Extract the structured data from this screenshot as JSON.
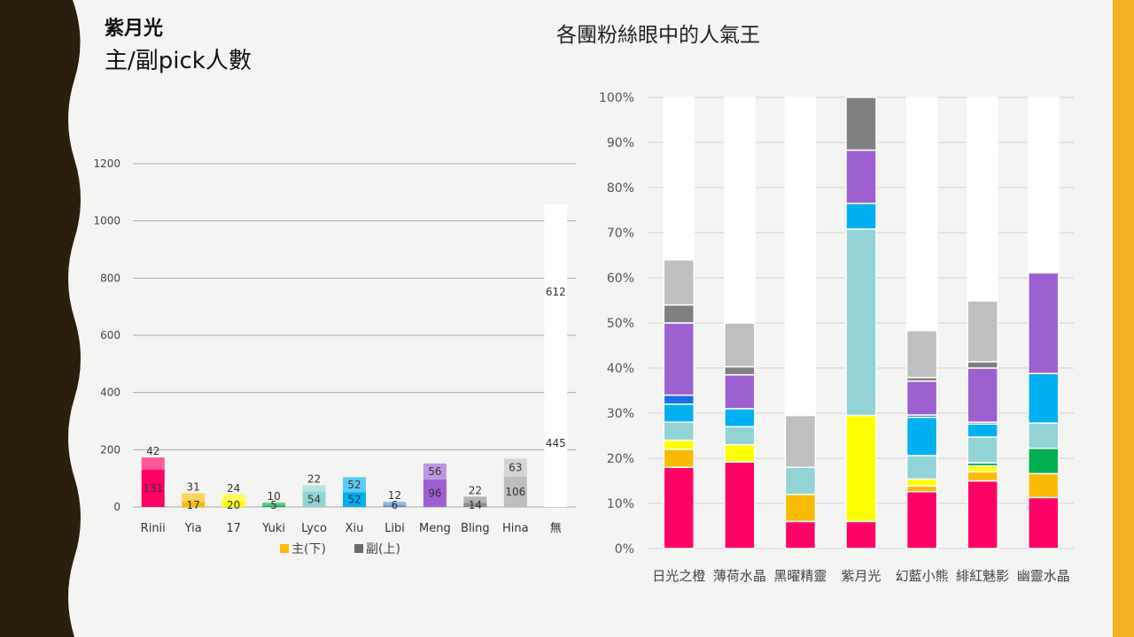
{
  "slide": {
    "title_main": "紫月光",
    "title_sub": "主/副pick人數",
    "right_title": "各團粉絲眼中的人氣王",
    "colors": {
      "left_wave": "#2b1e0c",
      "right_bar": "#f7b124",
      "background": "#f4f4f2"
    }
  },
  "chart_data": [
    {
      "type": "bar",
      "stacked": true,
      "categories": [
        "Rinii",
        "Yia",
        "17",
        "Yuki",
        "Lyco",
        "Xiu",
        "Libi",
        "Meng",
        "Bling",
        "Hina",
        "無"
      ],
      "series": [
        {
          "name": "主(下)",
          "values": [
            131,
            17,
            20,
            5,
            54,
            52,
            6,
            96,
            14,
            106,
            445
          ]
        },
        {
          "name": "副(上)",
          "values": [
            42,
            31,
            24,
            10,
            22,
            52,
            12,
            56,
            22,
            63,
            612
          ]
        }
      ],
      "colors": [
        "#ff0066",
        "#fbbb05",
        "#ffff00",
        "#00b050",
        "#92d4d6",
        "#00b0f0",
        "#5b8fd9",
        "#9e5fd0",
        "#8a8a8a",
        "#bdbdbd",
        "#ffffff"
      ],
      "ylim": [
        0,
        1200
      ],
      "yticks": [
        0,
        200,
        400,
        600,
        800,
        1000,
        1200
      ],
      "grid": true,
      "legend_position": "bottom",
      "legend": [
        {
          "label": "主(下)",
          "color": "#fbbb05"
        },
        {
          "label": "副(上)",
          "color": "#6b6b6b"
        }
      ]
    },
    {
      "type": "bar",
      "stacked": true,
      "percent": true,
      "categories": [
        "日光之橙",
        "薄荷水晶",
        "黑曜精靈",
        "紫月光",
        "幻藍小熊",
        "緋紅魅影",
        "幽靈水晶"
      ],
      "ylim": [
        0,
        100
      ],
      "yticks": [
        "0%",
        "10%",
        "20%",
        "30%",
        "40%",
        "50%",
        "60%",
        "70%",
        "80%",
        "90%",
        "100%"
      ],
      "grid": true,
      "stacks": [
        [
          {
            "color": "#ff0066",
            "value": 18
          },
          {
            "color": "#fbbb05",
            "value": 4
          },
          {
            "color": "#ffff00",
            "value": 2
          },
          {
            "color": "#92d4d6",
            "value": 4
          },
          {
            "color": "#00b0f0",
            "value": 4
          },
          {
            "color": "#1a6ff0",
            "value": 2
          },
          {
            "color": "#9e5fd0",
            "value": 16
          },
          {
            "color": "#7f7f7f",
            "value": 4
          },
          {
            "color": "#bfbfbf",
            "value": 10
          },
          {
            "color": "#ffffff",
            "value": 36
          }
        ],
        [
          {
            "color": "#ff0066",
            "value": 19.2
          },
          {
            "color": "#ffff00",
            "value": 3.8
          },
          {
            "color": "#92d4d6",
            "value": 4
          },
          {
            "color": "#00b0f0",
            "value": 4
          },
          {
            "color": "#9e5fd0",
            "value": 7.5
          },
          {
            "color": "#7f7f7f",
            "value": 1.8
          },
          {
            "color": "#bfbfbf",
            "value": 9.7
          },
          {
            "color": "#ffffff",
            "value": 50
          }
        ],
        [
          {
            "color": "#ff0066",
            "value": 6
          },
          {
            "color": "#fbbb05",
            "value": 6
          },
          {
            "color": "#92d4d6",
            "value": 6
          },
          {
            "color": "#bfbfbf",
            "value": 11.5
          },
          {
            "color": "#ffffff",
            "value": 70.5
          }
        ],
        [
          {
            "color": "#ff0066",
            "value": 6
          },
          {
            "color": "#ffff00",
            "value": 23.5
          },
          {
            "color": "#92d4d6",
            "value": 41.3
          },
          {
            "color": "#00b0f0",
            "value": 5.7
          },
          {
            "color": "#9e5fd0",
            "value": 11.8
          },
          {
            "color": "#7f7f7f",
            "value": 11.7
          }
        ],
        [
          {
            "color": "#ff0066",
            "value": 12.6
          },
          {
            "color": "#fbbb05",
            "value": 1.3
          },
          {
            "color": "#ffff00",
            "value": 1.5
          },
          {
            "color": "#92d4d6",
            "value": 5.2
          },
          {
            "color": "#00b0f0",
            "value": 8.5
          },
          {
            "color": "#1a6ff0",
            "value": 0.5
          },
          {
            "color": "#9e5fd0",
            "value": 7.5
          },
          {
            "color": "#7f7f7f",
            "value": 0.8
          },
          {
            "color": "#bfbfbf",
            "value": 10.4
          },
          {
            "color": "#ffffff",
            "value": 51.7
          }
        ],
        [
          {
            "color": "#ff0066",
            "value": 15
          },
          {
            "color": "#fbbb05",
            "value": 2
          },
          {
            "color": "#ffff00",
            "value": 1.3
          },
          {
            "color": "#00b050",
            "value": 0.7
          },
          {
            "color": "#92d4d6",
            "value": 5.7
          },
          {
            "color": "#00b0f0",
            "value": 2.9
          },
          {
            "color": "#1a6ff0",
            "value": 0.4
          },
          {
            "color": "#9e5fd0",
            "value": 12
          },
          {
            "color": "#7f7f7f",
            "value": 1.4
          },
          {
            "color": "#bfbfbf",
            "value": 13.5
          },
          {
            "color": "#ffffff",
            "value": 45.1
          }
        ],
        [
          {
            "color": "#ff0066",
            "value": 11.3
          },
          {
            "color": "#fbbb05",
            "value": 5.3
          },
          {
            "color": "#00b050",
            "value": 5.6
          },
          {
            "color": "#92d4d6",
            "value": 5.6
          },
          {
            "color": "#00b0f0",
            "value": 11
          },
          {
            "color": "#9e5fd0",
            "value": 22.3
          },
          {
            "color": "#ffffff",
            "value": 38.9
          }
        ]
      ]
    }
  ]
}
